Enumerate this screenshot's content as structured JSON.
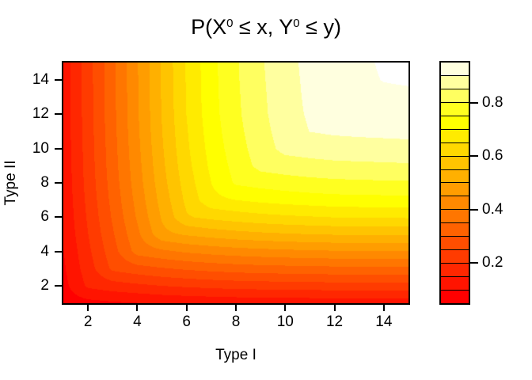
{
  "figure": {
    "background": "#ffffff",
    "frame_color": "#000000",
    "out_of_range_color": "#ffffff"
  },
  "chart_data": {
    "type": "heatmap",
    "subtype": "filled-contour",
    "title": "P(X0 <= x, Y0 <= y)",
    "title_parts": [
      "P(X",
      "0",
      " ≤ x, Y",
      "0",
      " ≤ y)"
    ],
    "xlabel": "Type I",
    "ylabel": "Type II",
    "x_range": [
      1,
      15
    ],
    "y_range": [
      1,
      15
    ],
    "x_ticks": {
      "values": [
        2,
        4,
        6,
        8,
        10,
        12,
        14
      ],
      "labels": [
        "2",
        "4",
        "6",
        "8",
        "10",
        "12",
        "14"
      ]
    },
    "y_ticks": {
      "values": [
        2,
        4,
        6,
        8,
        10,
        12,
        14
      ],
      "labels": [
        "2",
        "4",
        "6",
        "8",
        "10",
        "12",
        "14"
      ]
    },
    "levels": {
      "min": 0.05,
      "max": 0.95,
      "step": 0.05
    },
    "palette": [
      "#FF0000",
      "#FF1400",
      "#FF2700",
      "#FF3B00",
      "#FF4E00",
      "#FF6200",
      "#FF7600",
      "#FF8900",
      "#FF9D00",
      "#FFB000",
      "#FFC400",
      "#FFD800",
      "#FFEB00",
      "#FFFF00",
      "#FFFF20",
      "#FFFF60",
      "#FFFF9F",
      "#FFFFDF"
    ],
    "colorbar_ticks": {
      "values": [
        0.2,
        0.4,
        0.6,
        0.8
      ],
      "labels": [
        "0.2",
        "0.4",
        "0.6",
        "0.8"
      ]
    },
    "legend_position": "right",
    "x": [
      1,
      2,
      3,
      4,
      5,
      6,
      7,
      8,
      9,
      10,
      11,
      12,
      13,
      14,
      15
    ],
    "y": [
      1,
      2,
      3,
      4,
      5,
      6,
      7,
      8,
      9,
      10,
      11,
      12,
      13,
      14,
      15
    ],
    "z": [
      [
        0.071,
        0.083,
        0.092,
        0.098,
        0.104,
        0.108,
        0.111,
        0.114,
        0.115,
        0.117,
        0.118,
        0.118,
        0.119,
        0.119,
        0.119
      ],
      [
        0.083,
        0.159,
        0.176,
        0.188,
        0.199,
        0.207,
        0.213,
        0.218,
        0.221,
        0.223,
        0.225,
        0.227,
        0.227,
        0.228,
        0.228
      ],
      [
        0.092,
        0.176,
        0.26,
        0.279,
        0.294,
        0.306,
        0.315,
        0.322,
        0.327,
        0.33,
        0.333,
        0.335,
        0.336,
        0.337,
        0.338
      ],
      [
        0.098,
        0.188,
        0.279,
        0.369,
        0.389,
        0.406,
        0.417,
        0.426,
        0.432,
        0.437,
        0.441,
        0.444,
        0.445,
        0.446,
        0.447
      ],
      [
        0.104,
        0.199,
        0.294,
        0.389,
        0.485,
        0.505,
        0.519,
        0.53,
        0.538,
        0.544,
        0.549,
        0.552,
        0.554,
        0.555,
        0.556
      ],
      [
        0.108,
        0.207,
        0.306,
        0.406,
        0.505,
        0.595,
        0.612,
        0.624,
        0.634,
        0.641,
        0.646,
        0.651,
        0.653,
        0.654,
        0.655
      ],
      [
        0.111,
        0.213,
        0.315,
        0.417,
        0.519,
        0.612,
        0.686,
        0.7,
        0.711,
        0.719,
        0.725,
        0.73,
        0.732,
        0.733,
        0.735
      ],
      [
        0.114,
        0.218,
        0.322,
        0.426,
        0.53,
        0.624,
        0.7,
        0.757,
        0.768,
        0.777,
        0.784,
        0.789,
        0.791,
        0.793,
        0.794
      ],
      [
        0.115,
        0.221,
        0.327,
        0.432,
        0.538,
        0.634,
        0.711,
        0.768,
        0.816,
        0.826,
        0.833,
        0.838,
        0.84,
        0.842,
        0.844
      ],
      [
        0.117,
        0.223,
        0.33,
        0.437,
        0.544,
        0.641,
        0.719,
        0.777,
        0.826,
        0.865,
        0.872,
        0.878,
        0.88,
        0.882,
        0.884
      ],
      [
        0.118,
        0.225,
        0.333,
        0.441,
        0.549,
        0.646,
        0.725,
        0.784,
        0.833,
        0.872,
        0.901,
        0.907,
        0.91,
        0.912,
        0.914
      ],
      [
        0.118,
        0.227,
        0.335,
        0.444,
        0.552,
        0.651,
        0.73,
        0.789,
        0.838,
        0.878,
        0.907,
        0.932,
        0.934,
        0.937,
        0.938
      ],
      [
        0.119,
        0.227,
        0.336,
        0.445,
        0.554,
        0.653,
        0.732,
        0.791,
        0.84,
        0.88,
        0.91,
        0.934,
        0.942,
        0.944,
        0.945
      ],
      [
        0.119,
        0.228,
        0.337,
        0.446,
        0.555,
        0.654,
        0.733,
        0.793,
        0.842,
        0.882,
        0.912,
        0.937,
        0.944,
        0.951,
        0.953
      ],
      [
        0.119,
        0.228,
        0.338,
        0.447,
        0.556,
        0.655,
        0.735,
        0.794,
        0.844,
        0.884,
        0.914,
        0.938,
        0.945,
        0.953,
        0.958
      ]
    ]
  }
}
